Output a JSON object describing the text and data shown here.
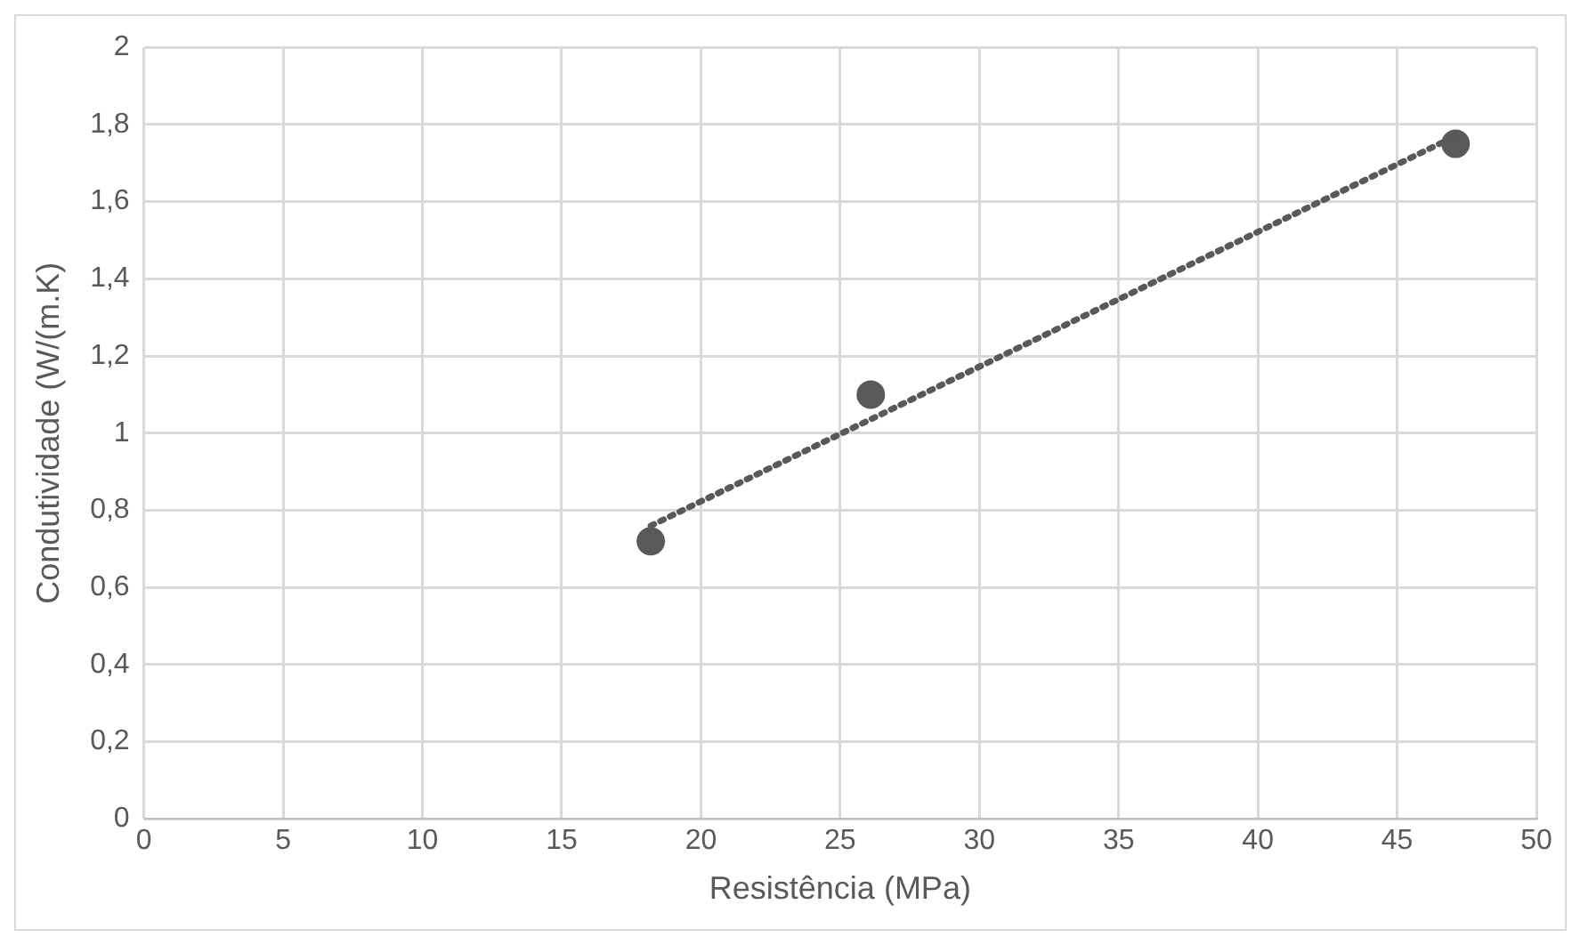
{
  "chart_data": {
    "type": "scatter",
    "xlabel": "Resistência (MPa)",
    "ylabel": "Condutividade (W/(m.K)",
    "xlim": [
      0,
      50
    ],
    "xticks": [
      0,
      5,
      10,
      15,
      20,
      25,
      30,
      35,
      40,
      45,
      50
    ],
    "ylim": [
      0,
      2
    ],
    "yticks": [
      {
        "value": 0,
        "label": "0"
      },
      {
        "value": 0.2,
        "label": "0,2"
      },
      {
        "value": 0.4,
        "label": "0,4"
      },
      {
        "value": 0.6,
        "label": "0,6"
      },
      {
        "value": 0.8,
        "label": "0,8"
      },
      {
        "value": 1,
        "label": "1"
      },
      {
        "value": 1.2,
        "label": "1,2"
      },
      {
        "value": 1.4,
        "label": "1,4"
      },
      {
        "value": 1.6,
        "label": "1,6"
      },
      {
        "value": 1.8,
        "label": "1,8"
      },
      {
        "value": 2,
        "label": "2"
      }
    ],
    "grid": true,
    "legend": false,
    "marker": "circle",
    "series": [
      {
        "type": "scatter",
        "color": "#595959",
        "x": [
          18.2,
          26.1,
          47.1
        ],
        "values": [
          0.72,
          1.1,
          1.75
        ]
      },
      {
        "type": "line",
        "color": "#595959",
        "line_style": "dotted",
        "marker": "none",
        "x": [
          18.2,
          47.1
        ],
        "values": [
          0.76,
          1.77
        ]
      }
    ]
  }
}
